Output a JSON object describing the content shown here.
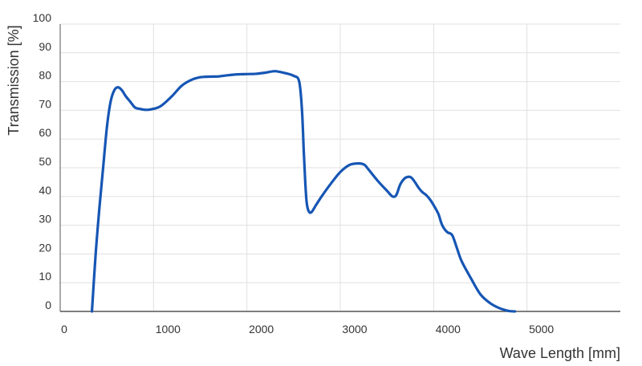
{
  "chart_data": {
    "type": "line",
    "title": "",
    "xlabel": "Wave Length [mm]",
    "ylabel": "Transmission [%]",
    "xlim": [
      0,
      6000
    ],
    "ylim": [
      0,
      100
    ],
    "x_ticks": [
      0,
      1000,
      2000,
      3000,
      4000,
      5000
    ],
    "y_ticks": [
      0,
      10,
      20,
      30,
      40,
      50,
      60,
      70,
      80,
      90,
      100
    ],
    "grid": {
      "vertical": true,
      "horizontal": true
    },
    "legend": "none",
    "line_color": "#1656b4",
    "grid_color": "#e0e0e0",
    "axis_color": "#555555",
    "series": [
      {
        "x": [
          340,
          380,
          420,
          460,
          500,
          540,
          580,
          620,
          660,
          700,
          750,
          800,
          850,
          900,
          950,
          1000,
          1050,
          1100,
          1200,
          1300,
          1400,
          1500,
          1600,
          1700,
          1800,
          1900,
          2000,
          2100,
          2200,
          2300,
          2400,
          2500,
          2560,
          2590,
          2610,
          2625,
          2640,
          2660,
          2690,
          2740,
          2800,
          2900,
          3000,
          3100,
          3200,
          3260,
          3300,
          3400,
          3500,
          3560,
          3600,
          3640,
          3680,
          3720,
          3760,
          3800,
          3840,
          3880,
          3920,
          3960,
          4000,
          4050,
          4080,
          4100,
          4110,
          4120,
          4150,
          4200,
          4250,
          4300,
          4400,
          4500,
          4600,
          4700,
          4800,
          4870
        ],
        "y": [
          0,
          20,
          36,
          50,
          64,
          73,
          77,
          78,
          77,
          75,
          73,
          71,
          70.5,
          70.2,
          70.2,
          70.5,
          71,
          72,
          75,
          78.5,
          80.5,
          81.5,
          81.7,
          81.8,
          82.2,
          82.5,
          82.6,
          82.7,
          83.1,
          83.6,
          83,
          82,
          80,
          70,
          55,
          45,
          38,
          35,
          34.5,
          37,
          40,
          44.5,
          48.5,
          51,
          51.5,
          51,
          49.5,
          45.5,
          42,
          40,
          40.5,
          44,
          46,
          46.8,
          46.6,
          45,
          43,
          41.5,
          40.5,
          39,
          37,
          34,
          31,
          29.5,
          29,
          28.5,
          27.5,
          26.5,
          22,
          17.5,
          11.5,
          6,
          3,
          1.2,
          0.2,
          0
        ]
      }
    ]
  }
}
